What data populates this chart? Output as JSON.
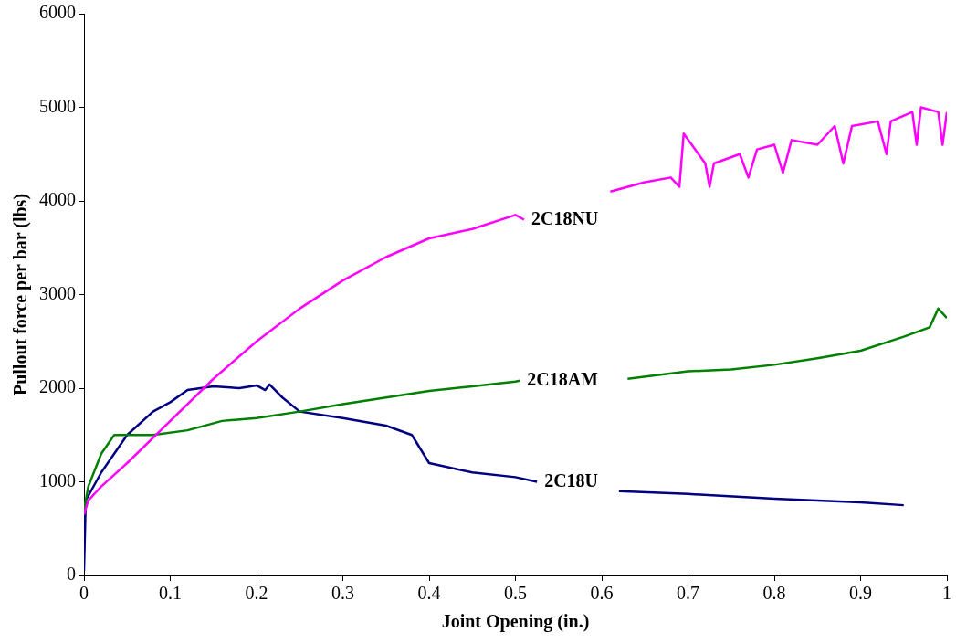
{
  "chart_data": {
    "type": "line",
    "xlabel": "Joint Opening (in.)",
    "ylabel": "Pullout force per bar (lbs)",
    "xlim": [
      0,
      1
    ],
    "xticks": [
      0,
      0.1,
      0.2,
      0.3,
      0.4,
      0.5,
      0.6,
      0.7,
      0.8,
      0.9,
      1
    ],
    "ylim": [
      0,
      6000
    ],
    "yticks": [
      0,
      1000,
      2000,
      3000,
      4000,
      5000,
      6000
    ],
    "grid": false,
    "legend": false,
    "marker": "none",
    "line_style": "solid",
    "series": [
      {
        "name": "2C18NU",
        "color": "#ff00ff",
        "x": [
          0,
          0.005,
          0.02,
          0.05,
          0.1,
          0.15,
          0.2,
          0.25,
          0.3,
          0.35,
          0.4,
          0.45,
          0.5,
          0.51,
          0.56,
          0.61,
          0.65,
          0.68,
          0.69,
          0.695,
          0.72,
          0.725,
          0.73,
          0.76,
          0.77,
          0.78,
          0.8,
          0.81,
          0.82,
          0.85,
          0.87,
          0.88,
          0.89,
          0.92,
          0.93,
          0.935,
          0.96,
          0.965,
          0.97,
          0.99,
          0.995,
          1.0
        ],
        "values": [
          650,
          800,
          950,
          1200,
          1650,
          2100,
          2500,
          2850,
          3150,
          3400,
          3600,
          3700,
          3850,
          3800,
          null,
          4100,
          4200,
          4250,
          4150,
          4720,
          4400,
          4150,
          4400,
          4500,
          4250,
          4550,
          4600,
          4300,
          4650,
          4600,
          4800,
          4400,
          4800,
          4850,
          4500,
          4850,
          4950,
          4600,
          5000,
          4950,
          4600,
          4950
        ]
      },
      {
        "name": "2C18AM",
        "color": "#008000",
        "x": [
          0,
          0.005,
          0.02,
          0.035,
          0.05,
          0.08,
          0.12,
          0.16,
          0.2,
          0.25,
          0.3,
          0.35,
          0.4,
          0.45,
          0.5,
          0.505,
          0.57,
          0.63,
          0.7,
          0.75,
          0.8,
          0.85,
          0.9,
          0.95,
          0.98,
          0.99,
          1.0
        ],
        "values": [
          700,
          950,
          1300,
          1500,
          1500,
          1500,
          1550,
          1650,
          1680,
          1750,
          1830,
          1900,
          1970,
          2020,
          2070,
          2080,
          null,
          2100,
          2180,
          2200,
          2250,
          2320,
          2400,
          2550,
          2650,
          2850,
          2750
        ]
      },
      {
        "name": "2C18U",
        "color": "#000080",
        "x": [
          0,
          0.002,
          0.02,
          0.05,
          0.08,
          0.1,
          0.12,
          0.15,
          0.18,
          0.2,
          0.21,
          0.215,
          0.23,
          0.25,
          0.3,
          0.35,
          0.38,
          0.4,
          0.45,
          0.5,
          0.525,
          0.57,
          0.62,
          0.7,
          0.8,
          0.9,
          0.95
        ],
        "values": [
          50,
          800,
          1100,
          1500,
          1750,
          1850,
          1980,
          2020,
          2000,
          2030,
          1980,
          2040,
          1900,
          1750,
          1680,
          1600,
          1500,
          1200,
          1100,
          1050,
          1000,
          null,
          900,
          870,
          820,
          780,
          750
        ]
      }
    ]
  }
}
